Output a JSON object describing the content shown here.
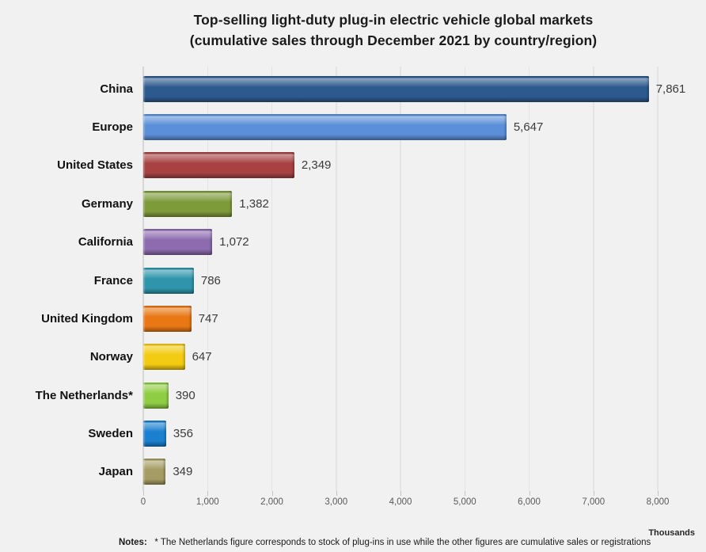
{
  "chart_data": {
    "type": "bar",
    "orientation": "horizontal",
    "title": "Top-selling light-duty plug-in electric vehicle global markets",
    "subtitle": "(cumulative sales through December 2021 by country/region)",
    "categories": [
      "China",
      "Europe",
      "United States",
      "Germany",
      "California",
      "France",
      "United Kingdom",
      "Norway",
      "The Netherlands*",
      "Sweden",
      "Japan"
    ],
    "values": [
      7861,
      5647,
      2349,
      1382,
      1072,
      786,
      747,
      647,
      390,
      356,
      349
    ],
    "value_labels": [
      "7,861",
      "5,647",
      "2,349",
      "1,382",
      "1,072",
      "786",
      "747",
      "647",
      "390",
      "356",
      "349"
    ],
    "bar_colors": [
      "#2D5A8E",
      "#5B8FD8",
      "#A84242",
      "#7E9B3A",
      "#8D6BAE",
      "#2E95AB",
      "#E97714",
      "#F3CB12",
      "#8FCE44",
      "#1B80D0",
      "#A59C63"
    ],
    "xlabel": "",
    "ylabel": "",
    "xlim": [
      0,
      8000
    ],
    "x_ticks": [
      "0",
      "1,000",
      "2,000",
      "3,000",
      "4,000",
      "5,000",
      "6,000",
      "7,000",
      "8,000"
    ],
    "x_unit_label": "Thousands",
    "grid": true,
    "legend_position": "none",
    "background_color": "#F1F1F1",
    "gridline_color": "#E4E4E4",
    "axis_line_color": "#D7D7D7",
    "tick_label_color": "#595959",
    "value_label_color": "#3B3B3B",
    "category_label_color": "#111111",
    "title_color": "#1A1A1A"
  },
  "notes": {
    "label": "Notes:",
    "text": "* The Netherlands figure corresponds to stock of plug-ins in use while the other figures are cumulative sales or registrations"
  }
}
